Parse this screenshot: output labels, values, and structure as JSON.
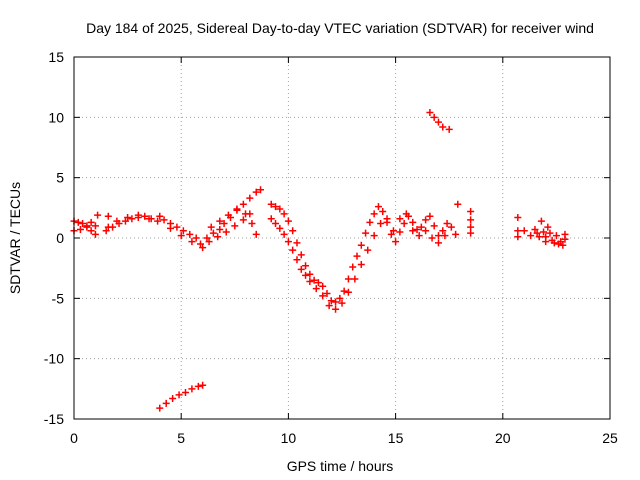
{
  "chart_data": {
    "type": "scatter",
    "title": "Day 184 of 2025, Sidereal Day-to-day VTEC variation (SDTVAR) for receiver wind",
    "xlabel": "GPS time / hours",
    "ylabel": "SDTVAR / TECUs",
    "xlim": [
      0,
      25
    ],
    "ylim": [
      -15,
      15
    ],
    "xticks": [
      0,
      5,
      10,
      15,
      20,
      25
    ],
    "yticks": [
      15,
      10,
      5,
      0,
      -5,
      -10,
      -15
    ],
    "grid": true,
    "marker": "+",
    "color": "#ff0000",
    "series": [
      {
        "name": "SDTVAR",
        "points": [
          [
            0.0,
            1.4
          ],
          [
            0.2,
            1.3
          ],
          [
            0.4,
            1.2
          ],
          [
            0.6,
            1.0
          ],
          [
            0.8,
            0.6
          ],
          [
            1.0,
            0.3
          ],
          [
            1.1,
            1.9
          ],
          [
            1.6,
            1.8
          ],
          [
            0.0,
            0.6
          ],
          [
            0.3,
            0.7
          ],
          [
            0.6,
            0.9
          ],
          [
            0.8,
            1.3
          ],
          [
            1.0,
            1.0
          ],
          [
            1.5,
            0.6
          ],
          [
            1.8,
            0.9
          ],
          [
            2.1,
            1.2
          ],
          [
            2.4,
            1.4
          ],
          [
            2.7,
            1.6
          ],
          [
            3.0,
            1.7
          ],
          [
            3.3,
            1.8
          ],
          [
            3.6,
            1.6
          ],
          [
            3.9,
            1.4
          ],
          [
            4.2,
            1.5
          ],
          [
            4.5,
            1.2
          ],
          [
            4.8,
            0.9
          ],
          [
            5.1,
            0.6
          ],
          [
            5.4,
            0.3
          ],
          [
            5.7,
            0.0
          ],
          [
            5.9,
            -0.5
          ],
          [
            1.6,
            0.9
          ],
          [
            2.0,
            1.4
          ],
          [
            2.5,
            1.7
          ],
          [
            3.0,
            1.9
          ],
          [
            3.5,
            1.6
          ],
          [
            4.0,
            1.8
          ],
          [
            4.5,
            0.8
          ],
          [
            5.0,
            0.2
          ],
          [
            5.5,
            -0.3
          ],
          [
            6.0,
            -0.8
          ],
          [
            6.2,
            0.0
          ],
          [
            6.5,
            0.4
          ],
          [
            6.8,
            0.7
          ],
          [
            7.0,
            1.2
          ],
          [
            7.3,
            1.7
          ],
          [
            7.6,
            2.3
          ],
          [
            7.9,
            2.8
          ],
          [
            8.2,
            3.3
          ],
          [
            8.5,
            3.8
          ],
          [
            8.7,
            4.0
          ],
          [
            6.3,
            -0.3
          ],
          [
            6.7,
            0.1
          ],
          [
            7.1,
            0.5
          ],
          [
            7.5,
            1.0
          ],
          [
            7.9,
            1.5
          ],
          [
            8.2,
            2.0
          ],
          [
            6.4,
            0.9
          ],
          [
            6.8,
            1.4
          ],
          [
            7.2,
            1.9
          ],
          [
            7.6,
            2.4
          ],
          [
            8.0,
            2.0
          ],
          [
            8.3,
            1.2
          ],
          [
            8.5,
            0.3
          ],
          [
            9.2,
            2.8
          ],
          [
            9.4,
            2.6
          ],
          [
            9.6,
            2.4
          ],
          [
            9.8,
            2.0
          ],
          [
            10.0,
            1.4
          ],
          [
            10.2,
            0.6
          ],
          [
            10.4,
            -0.4
          ],
          [
            10.6,
            -1.4
          ],
          [
            10.8,
            -2.3
          ],
          [
            11.0,
            -3.0
          ],
          [
            11.2,
            -3.5
          ],
          [
            11.4,
            -3.7
          ],
          [
            11.6,
            -4.0
          ],
          [
            11.8,
            -4.6
          ],
          [
            12.0,
            -5.2
          ],
          [
            12.2,
            -5.3
          ],
          [
            12.4,
            -5.0
          ],
          [
            12.6,
            -4.4
          ],
          [
            12.8,
            -3.4
          ],
          [
            13.0,
            -2.4
          ],
          [
            13.2,
            -1.5
          ],
          [
            13.4,
            -0.6
          ],
          [
            13.6,
            0.4
          ],
          [
            13.8,
            1.3
          ],
          [
            14.0,
            2.0
          ],
          [
            14.2,
            2.6
          ],
          [
            14.4,
            2.2
          ],
          [
            14.6,
            1.3
          ],
          [
            14.8,
            0.3
          ],
          [
            15.0,
            -0.3
          ],
          [
            9.2,
            1.6
          ],
          [
            9.4,
            1.2
          ],
          [
            9.6,
            0.8
          ],
          [
            9.8,
            0.3
          ],
          [
            10.0,
            -0.3
          ],
          [
            10.2,
            -1.0
          ],
          [
            10.4,
            -1.8
          ],
          [
            10.6,
            -2.6
          ],
          [
            10.8,
            -3.1
          ],
          [
            11.0,
            -3.6
          ],
          [
            11.3,
            -4.2
          ],
          [
            11.6,
            -4.8
          ],
          [
            11.9,
            -5.6
          ],
          [
            12.2,
            -5.9
          ],
          [
            12.5,
            -5.4
          ],
          [
            12.8,
            -4.5
          ],
          [
            13.1,
            -3.4
          ],
          [
            13.4,
            -2.2
          ],
          [
            13.7,
            -1.0
          ],
          [
            14.0,
            0.2
          ],
          [
            14.3,
            1.2
          ],
          [
            14.6,
            1.6
          ],
          [
            14.9,
            0.6
          ],
          [
            15.2,
            0.5
          ],
          [
            15.4,
            1.2
          ],
          [
            15.6,
            1.8
          ],
          [
            15.8,
            1.3
          ],
          [
            16.0,
            0.7
          ],
          [
            16.2,
            0.9
          ],
          [
            16.4,
            1.5
          ],
          [
            16.6,
            1.8
          ],
          [
            16.8,
            1.0
          ],
          [
            17.0,
            0.2
          ],
          [
            17.2,
            0.6
          ],
          [
            17.4,
            1.2
          ],
          [
            17.6,
            0.9
          ],
          [
            17.8,
            0.3
          ],
          [
            17.9,
            2.8
          ],
          [
            15.2,
            1.6
          ],
          [
            15.5,
            2.0
          ],
          [
            15.8,
            0.6
          ],
          [
            16.1,
            0.2
          ],
          [
            16.4,
            0.6
          ],
          [
            16.7,
            0.0
          ],
          [
            17.0,
            -0.4
          ],
          [
            17.3,
            0.2
          ],
          [
            18.5,
            2.2
          ],
          [
            18.5,
            1.5
          ],
          [
            18.5,
            0.9
          ],
          [
            18.5,
            0.4
          ],
          [
            16.6,
            10.4
          ],
          [
            16.8,
            10.0
          ],
          [
            17.0,
            9.6
          ],
          [
            17.2,
            9.2
          ],
          [
            17.5,
            9.0
          ],
          [
            4.0,
            -14.1
          ],
          [
            4.3,
            -13.7
          ],
          [
            4.6,
            -13.3
          ],
          [
            4.9,
            -13.0
          ],
          [
            5.2,
            -12.8
          ],
          [
            5.5,
            -12.5
          ],
          [
            5.8,
            -12.3
          ],
          [
            6.0,
            -12.2
          ],
          [
            20.7,
            1.7
          ],
          [
            20.7,
            0.6
          ],
          [
            20.7,
            0.1
          ],
          [
            21.0,
            0.6
          ],
          [
            21.3,
            0.2
          ],
          [
            21.5,
            0.7
          ],
          [
            21.7,
            0.1
          ],
          [
            21.8,
            1.4
          ],
          [
            21.9,
            0.5
          ],
          [
            22.0,
            -0.3
          ],
          [
            22.1,
            0.9
          ],
          [
            22.2,
            0.4
          ],
          [
            22.4,
            -0.4
          ],
          [
            22.6,
            -0.5
          ],
          [
            22.8,
            -0.6
          ],
          [
            22.9,
            -0.1
          ],
          [
            21.6,
            0.4
          ],
          [
            22.0,
            0.1
          ],
          [
            22.3,
            -0.2
          ],
          [
            22.5,
            0.2
          ],
          [
            22.7,
            -0.3
          ],
          [
            22.9,
            0.3
          ]
        ]
      }
    ]
  }
}
